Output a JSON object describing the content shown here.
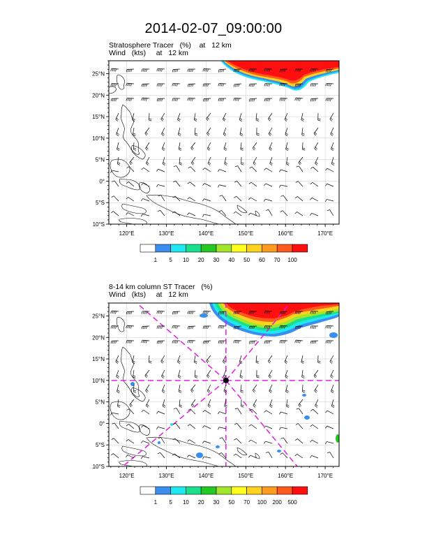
{
  "title": "2014-02-07_09:00:00",
  "panels": [
    {
      "subtitle_line1": [
        "Stratosphere Tracer",
        "(%)",
        "at",
        "12 km"
      ],
      "subtitle_line2": [
        "Wind",
        "(kts)",
        "at",
        "12 km"
      ],
      "lat_labels": [
        "25°N",
        "20°N",
        "15°N",
        "10°N",
        "5°N",
        "0°",
        "5°S",
        "10°S"
      ],
      "lon_labels": [
        "120°E",
        "130°E",
        "140°E",
        "150°E",
        "160°E",
        "170°E"
      ],
      "colorbar": {
        "labels": [
          "1",
          "5",
          "10",
          "20",
          "30",
          "40",
          "50",
          "60",
          "70",
          "100"
        ],
        "colors": [
          "#ffffff",
          "#3a8ef0",
          "#1ee8f0",
          "#19e08c",
          "#23c823",
          "#a2e62c",
          "#ffff1e",
          "#ffd21e",
          "#ff9b1e",
          "#ff5a1e",
          "#ff0f0f"
        ]
      }
    },
    {
      "subtitle_line1": [
        "8-14 km column ST Tracer",
        "(%)"
      ],
      "subtitle_line2": [
        "Wind",
        "(kts)",
        "at",
        "12 km"
      ],
      "lat_labels": [
        "25°N",
        "20°N",
        "15°N",
        "10°N",
        "5°N",
        "0°",
        "5°S",
        "10°S"
      ],
      "lon_labels": [
        "120°E",
        "130°E",
        "140°E",
        "150°E",
        "160°E",
        "170°E"
      ],
      "cross_center": {
        "lon": 145,
        "lat": 10
      },
      "cross_color": "#e01ee0",
      "colorbar": {
        "labels": [
          "1",
          "5",
          "10",
          "20",
          "30",
          "50",
          "70",
          "100",
          "200",
          "500"
        ],
        "colors": [
          "#ffffff",
          "#3a8ef0",
          "#1ee8f0",
          "#19e08c",
          "#23c823",
          "#a2e62c",
          "#ffff1e",
          "#ffd21e",
          "#ff9b1e",
          "#ff5a1e",
          "#ff0f0f"
        ]
      }
    }
  ],
  "map_extent": {
    "lon_min": 115.5,
    "lon_max": 173.5,
    "lat_min": -10,
    "lat_max": 28
  }
}
